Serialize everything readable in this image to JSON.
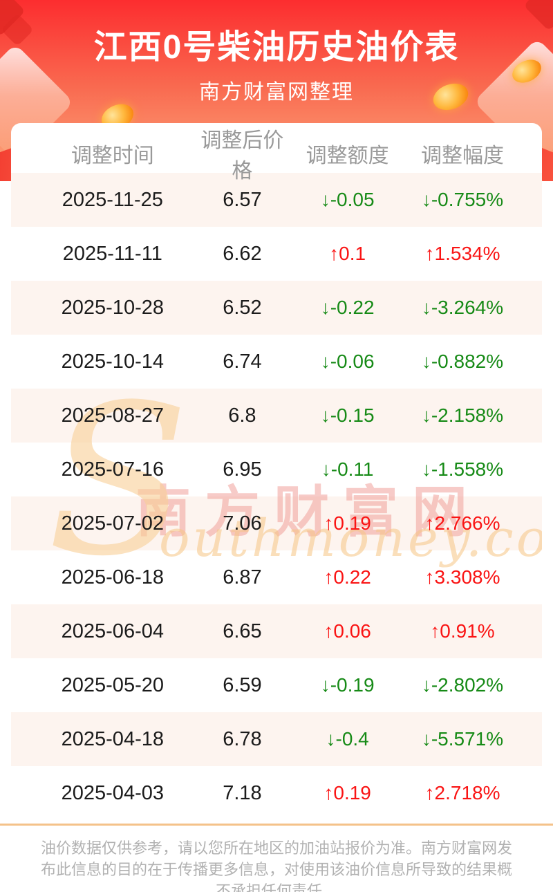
{
  "header": {
    "title": "江西0号柴油历史油价表",
    "subtitle": "南方财富网整理"
  },
  "table": {
    "columns": [
      "调整时间",
      "调整后价格",
      "调整额度",
      "调整幅度"
    ],
    "rows": [
      {
        "date": "2025-11-25",
        "price": "6.57",
        "amount": "↓-0.05",
        "pct": "↓-0.755%",
        "direction": "down"
      },
      {
        "date": "2025-11-11",
        "price": "6.62",
        "amount": "↑0.1",
        "pct": "↑1.534%",
        "direction": "up"
      },
      {
        "date": "2025-10-28",
        "price": "6.52",
        "amount": "↓-0.22",
        "pct": "↓-3.264%",
        "direction": "down"
      },
      {
        "date": "2025-10-14",
        "price": "6.74",
        "amount": "↓-0.06",
        "pct": "↓-0.882%",
        "direction": "down"
      },
      {
        "date": "2025-08-27",
        "price": "6.8",
        "amount": "↓-0.15",
        "pct": "↓-2.158%",
        "direction": "down"
      },
      {
        "date": "2025-07-16",
        "price": "6.95",
        "amount": "↓-0.11",
        "pct": "↓-1.558%",
        "direction": "down"
      },
      {
        "date": "2025-07-02",
        "price": "7.06",
        "amount": "↑0.19",
        "pct": "↑2.766%",
        "direction": "up"
      },
      {
        "date": "2025-06-18",
        "price": "6.87",
        "amount": "↑0.22",
        "pct": "↑3.308%",
        "direction": "up"
      },
      {
        "date": "2025-06-04",
        "price": "6.65",
        "amount": "↑0.06",
        "pct": "↑0.91%",
        "direction": "up"
      },
      {
        "date": "2025-05-20",
        "price": "6.59",
        "amount": "↓-0.19",
        "pct": "↓-2.802%",
        "direction": "down"
      },
      {
        "date": "2025-04-18",
        "price": "6.78",
        "amount": "↓-0.4",
        "pct": "↓-5.571%",
        "direction": "down"
      },
      {
        "date": "2025-04-03",
        "price": "7.18",
        "amount": "↑0.19",
        "pct": "↑2.718%",
        "direction": "up"
      }
    ]
  },
  "watermark": {
    "cn": "南方财富网",
    "en_initial": "S",
    "en_rest": "outhmoney.com"
  },
  "footer": {
    "disclaimer": "油价数据仅供参考，请以您所在地区的加油站报价为准。南方财富网发布此信息的目的在于传播更多信息，对使用该油价信息所导致的结果概不承担任何责任。"
  },
  "colors": {
    "top_red": "#fc2d2f",
    "bottom_peach": "#fcaa7e",
    "up_red": "#fa1414",
    "down_green": "#168a16",
    "row_alt_bg": "#fdf4ef",
    "header_text": "#999999",
    "divider": "#f4c28a",
    "footer_text": "#b1b1b1"
  }
}
